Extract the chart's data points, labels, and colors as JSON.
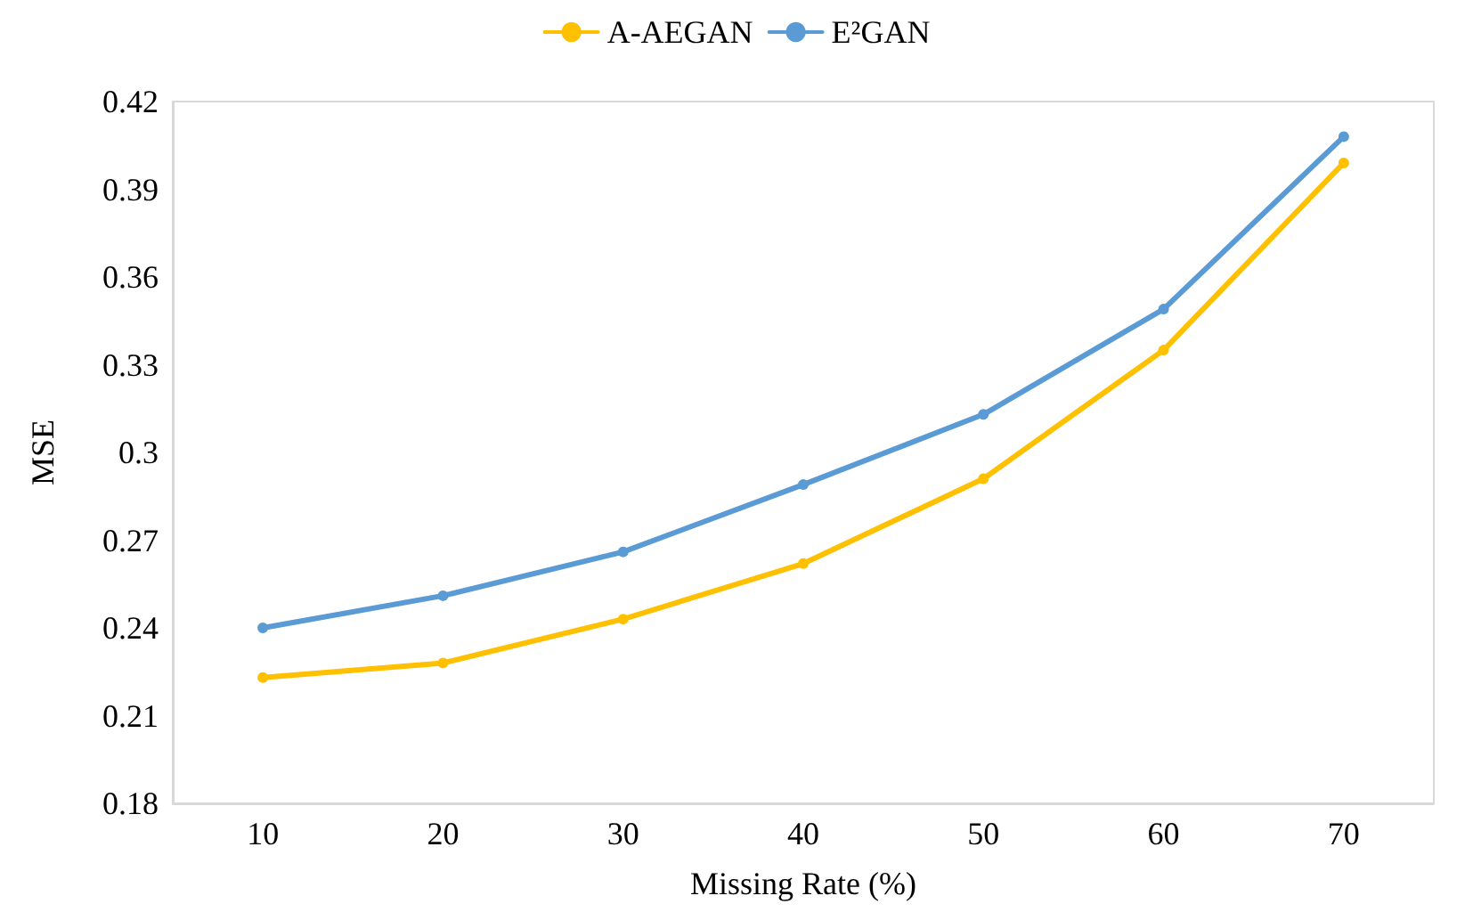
{
  "chart_data": {
    "type": "line",
    "xlabel": "Missing Rate (%)",
    "ylabel": "MSE",
    "categories": [
      "10",
      "20",
      "30",
      "40",
      "50",
      "60",
      "70"
    ],
    "series": [
      {
        "name": "A-AEGAN",
        "color": "#ffc000",
        "values": [
          0.223,
          0.228,
          0.243,
          0.262,
          0.291,
          0.335,
          0.399
        ]
      },
      {
        "name": "E²GAN",
        "color": "#5b9bd5",
        "values": [
          0.24,
          0.251,
          0.266,
          0.289,
          0.313,
          0.349,
          0.408
        ]
      }
    ],
    "ylim": [
      0.18,
      0.42
    ],
    "yticks": [
      0.18,
      0.21,
      0.24,
      0.27,
      0.3,
      0.33,
      0.36,
      0.39,
      0.42
    ],
    "grid": false,
    "legend": "top",
    "marker": "circle",
    "line_style": "solid"
  }
}
